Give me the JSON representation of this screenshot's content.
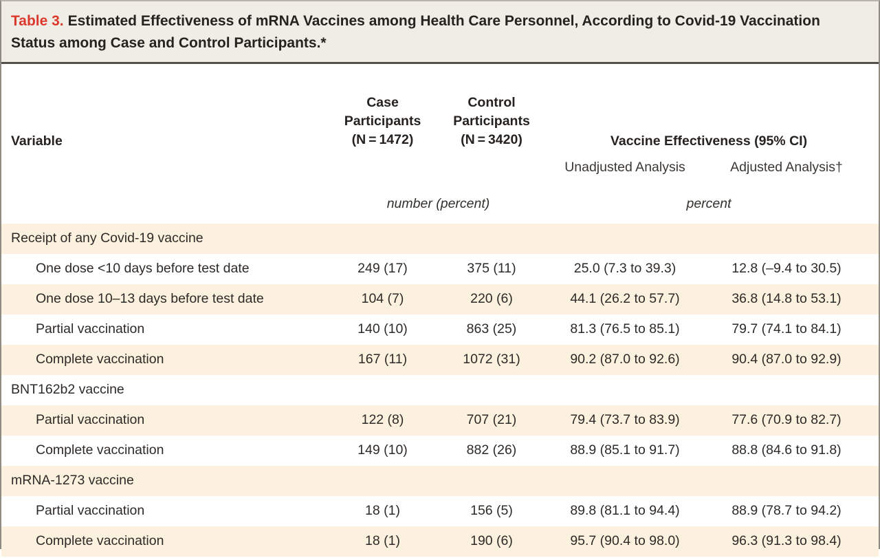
{
  "title": {
    "label": "Table 3.",
    "text": "Estimated Effectiveness of mRNA Vaccines among Health Care Personnel, According to Covid-19 Vaccination Status among Case and Control Participants.*"
  },
  "header": {
    "variable": "Variable",
    "case_participants": "Case\nParticipants\n(N = 1472)",
    "control_participants": "Control\nParticipants\n(N = 3420)",
    "vaccine_effectiveness": "Vaccine Effectiveness (95% CI)",
    "unadjusted": "Unadjusted Analysis",
    "adjusted": "Adjusted Analysis†",
    "units_participants": "number (percent)",
    "units_effectiveness": "percent"
  },
  "table": {
    "rows": [
      {
        "type": "section",
        "label": "Receipt of any Covid-19 vaccine",
        "case": "",
        "control": "",
        "unadjusted": "",
        "adjusted": ""
      },
      {
        "type": "entry",
        "label": "One dose <10 days before test date",
        "case": "249 (17)",
        "control": "375 (11)",
        "unadjusted": "25.0 (7.3 to 39.3)",
        "adjusted": "12.8 (–9.4 to 30.5)"
      },
      {
        "type": "entry",
        "label": "One dose 10–13 days before test date",
        "case": "104 (7)",
        "control": "220 (6)",
        "unadjusted": "44.1 (26.2 to 57.7)",
        "adjusted": "36.8 (14.8 to 53.1)"
      },
      {
        "type": "entry",
        "label": "Partial vaccination",
        "case": "140 (10)",
        "control": "863 (25)",
        "unadjusted": "81.3 (76.5 to 85.1)",
        "adjusted": "79.7 (74.1 to 84.1)"
      },
      {
        "type": "entry",
        "label": "Complete vaccination",
        "case": "167 (11)",
        "control": "1072 (31)",
        "unadjusted": "90.2 (87.0 to 92.6)",
        "adjusted": "90.4 (87.0 to 92.9)"
      },
      {
        "type": "section",
        "label": "BNT162b2 vaccine",
        "case": "",
        "control": "",
        "unadjusted": "",
        "adjusted": ""
      },
      {
        "type": "entry",
        "label": "Partial vaccination",
        "case": "122 (8)",
        "control": "707 (21)",
        "unadjusted": "79.4 (73.7 to 83.9)",
        "adjusted": "77.6 (70.9 to 82.7)"
      },
      {
        "type": "entry",
        "label": "Complete vaccination",
        "case": "149 (10)",
        "control": "882 (26)",
        "unadjusted": "88.9 (85.1 to 91.7)",
        "adjusted": "88.8 (84.6 to 91.8)"
      },
      {
        "type": "section",
        "label": "mRNA-1273 vaccine",
        "case": "",
        "control": "",
        "unadjusted": "",
        "adjusted": ""
      },
      {
        "type": "entry",
        "label": "Partial vaccination",
        "case": "18 (1)",
        "control": "156 (5)",
        "unadjusted": "89.8 (81.1 to 94.4)",
        "adjusted": "88.9 (78.7 to 94.2)"
      },
      {
        "type": "entry",
        "label": "Complete vaccination",
        "case": "18 (1)",
        "control": "190 (6)",
        "unadjusted": "95.7 (90.4 to 98.0)",
        "adjusted": "96.3 (91.3 to 98.4)"
      }
    ]
  },
  "colors": {
    "stripe_beige": "#fbf1de",
    "title_band": "#f0ede6",
    "title_accent_red": "#dd382c",
    "text": "#2e2a27",
    "border": "#8f8b83"
  }
}
